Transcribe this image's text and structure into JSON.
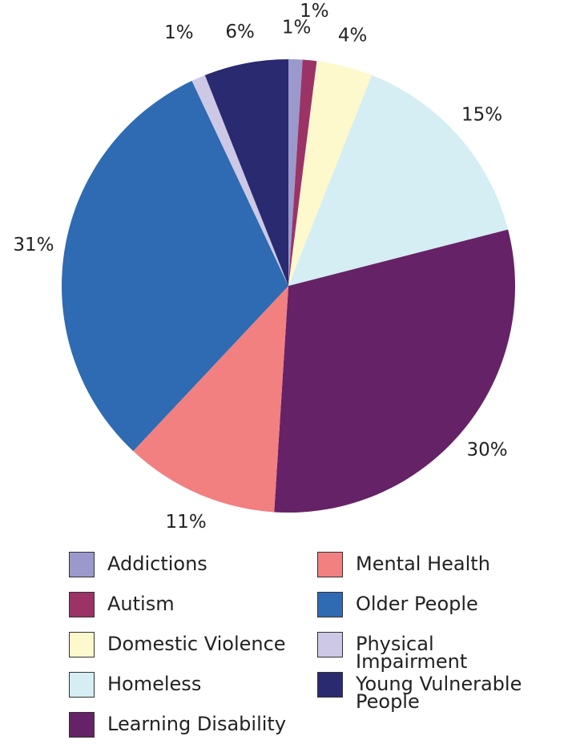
{
  "chart_data": {
    "type": "pie",
    "categories": [
      "Addictions",
      "Autism",
      "Domestic Violence",
      "Homeless",
      "Learning Disability",
      "Mental Health",
      "Older People",
      "Physical Impairment",
      "Young Vulnerable People"
    ],
    "values": [
      1,
      1,
      4,
      15,
      30,
      11,
      31,
      1,
      6
    ],
    "value_labels": [
      "1%",
      "1%",
      "4%",
      "15%",
      "30%",
      "11%",
      "31%",
      "1%",
      "6%"
    ],
    "colors": [
      "#9b99cc",
      "#9b3366",
      "#fdf9cc",
      "#d4eef3",
      "#662266",
      "#f28080",
      "#2e6bb3",
      "#ccc8e6",
      "#2a2a70"
    ]
  }
}
